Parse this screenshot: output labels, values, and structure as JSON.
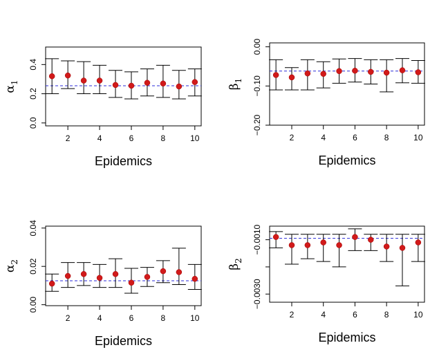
{
  "chart_data": [
    {
      "type": "scatter",
      "title": "",
      "xlabel": "Epidemics",
      "ylabel_symbol": "α",
      "ylabel_sub": "1",
      "x": [
        1,
        2,
        3,
        4,
        5,
        6,
        7,
        8,
        9,
        10
      ],
      "y": [
        0.32,
        0.325,
        0.29,
        0.29,
        0.26,
        0.255,
        0.275,
        0.27,
        0.25,
        0.28
      ],
      "lower": [
        0.2,
        0.235,
        0.2,
        0.2,
        0.175,
        0.165,
        0.185,
        0.175,
        0.165,
        0.185
      ],
      "upper": [
        0.44,
        0.425,
        0.42,
        0.395,
        0.36,
        0.35,
        0.37,
        0.395,
        0.36,
        0.37
      ],
      "reference": 0.255,
      "xlim": [
        0.6,
        10.4
      ],
      "ylim": [
        -0.02,
        0.52
      ],
      "xticks": [
        2,
        4,
        6,
        8,
        10
      ],
      "yticks": [
        0.0,
        0.2,
        0.4
      ],
      "ytick_labels": [
        "0.0",
        "0.2",
        "0.4"
      ]
    },
    {
      "type": "scatter",
      "title": "",
      "xlabel": "Epidemics",
      "ylabel_symbol": "β",
      "ylabel_sub": "1",
      "x": [
        1,
        2,
        3,
        4,
        5,
        6,
        7,
        8,
        9,
        10
      ],
      "y": [
        -0.072,
        -0.078,
        -0.068,
        -0.069,
        -0.062,
        -0.061,
        -0.064,
        -0.066,
        -0.06,
        -0.065
      ],
      "lower": [
        -0.11,
        -0.11,
        -0.11,
        -0.105,
        -0.093,
        -0.09,
        -0.095,
        -0.115,
        -0.092,
        -0.093
      ],
      "upper": [
        -0.033,
        -0.053,
        -0.033,
        -0.038,
        -0.031,
        -0.03,
        -0.033,
        -0.033,
        -0.03,
        -0.035
      ],
      "reference": -0.062,
      "xlim": [
        0.6,
        10.4
      ],
      "ylim": [
        -0.2,
        0.01
      ],
      "xticks": [
        2,
        4,
        6,
        8,
        10
      ],
      "yticks": [
        0.0,
        -0.1,
        -0.2
      ],
      "ytick_labels": [
        "0.00",
        "−0.10",
        "−0.20"
      ]
    },
    {
      "type": "scatter",
      "title": "",
      "xlabel": "Epidemics",
      "ylabel_symbol": "α",
      "ylabel_sub": "2",
      "x": [
        1,
        2,
        3,
        4,
        5,
        6,
        7,
        8,
        9,
        10
      ],
      "y": [
        0.011,
        0.015,
        0.016,
        0.014,
        0.016,
        0.0115,
        0.0145,
        0.0175,
        0.017,
        0.0135
      ],
      "lower": [
        0.007,
        0.009,
        0.01,
        0.009,
        0.009,
        0.006,
        0.0095,
        0.0115,
        0.0105,
        0.008
      ],
      "upper": [
        0.016,
        0.022,
        0.022,
        0.021,
        0.024,
        0.019,
        0.0195,
        0.023,
        0.0295,
        0.021
      ],
      "reference": 0.0125,
      "xlim": [
        0.6,
        10.4
      ],
      "ylim": [
        -0.0005,
        0.041
      ],
      "xticks": [
        2,
        4,
        6,
        8,
        10
      ],
      "yticks": [
        0.0,
        0.02,
        0.04
      ],
      "ytick_labels": [
        "0.00",
        "0.02",
        "0.04"
      ]
    },
    {
      "type": "scatter",
      "title": "",
      "xlabel": "Epidemics",
      "ylabel_symbol": "β",
      "ylabel_sub": "2",
      "x": [
        1,
        2,
        3,
        4,
        5,
        6,
        7,
        8,
        9,
        10
      ],
      "y": [
        -0.0009,
        -0.0012,
        -0.0012,
        -0.0011,
        -0.0012,
        -0.0009,
        -0.001,
        -0.00125,
        -0.0013,
        -0.0011
      ],
      "lower": [
        -0.0013,
        -0.0019,
        -0.0017,
        -0.0018,
        -0.002,
        -0.0014,
        -0.0014,
        -0.0018,
        -0.0027,
        -0.0018
      ],
      "upper": [
        -0.0007,
        -0.0008,
        -0.0008,
        -0.0008,
        -0.0008,
        -0.0006,
        -0.0008,
        -0.0008,
        -0.0008,
        -0.0008
      ],
      "reference": -0.00095,
      "xlim": [
        0.6,
        10.4
      ],
      "ylim": [
        -0.0033,
        -0.0005
      ],
      "xticks": [
        2,
        4,
        6,
        8,
        10
      ],
      "yticks": [
        -0.001,
        -0.003
      ],
      "ytick_labels": [
        "−0.0010",
        "−0.0030"
      ],
      "minor_yticks": [
        -0.002
      ]
    }
  ]
}
